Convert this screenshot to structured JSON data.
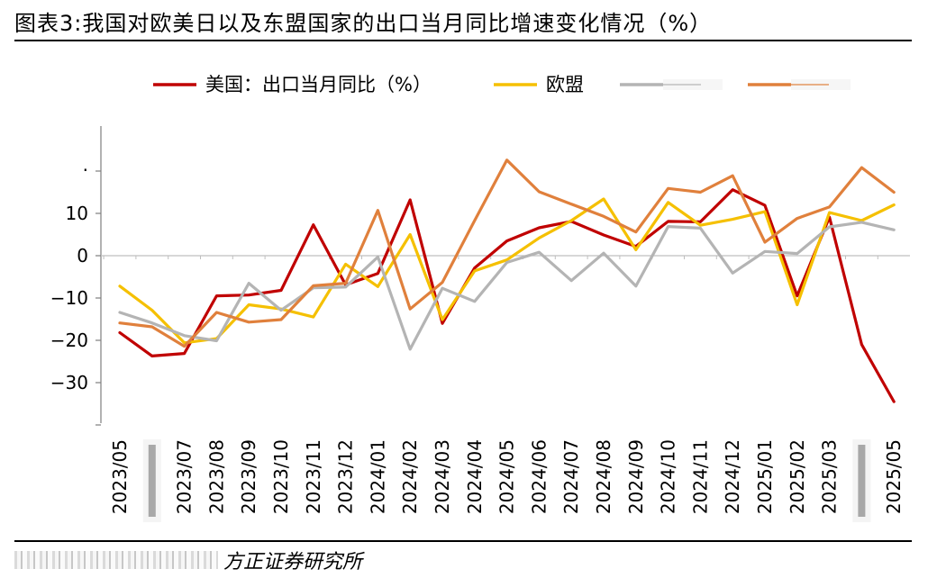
{
  "title": "图表3:我国对欧美日以及东盟国家的出口当月同比增速变化情况（%）",
  "source": "方正证券研究所",
  "chart_data": {
    "type": "line",
    "title": "图表3:我国对欧美日以及东盟国家的出口当月同比增速变化情况（%）",
    "xlabel": "",
    "ylabel": "",
    "ylim": [
      -40,
      20
    ],
    "yticks": [
      -30,
      -20,
      -10,
      0,
      10
    ],
    "grid": false,
    "legend_position": "top",
    "x": [
      "2023/05",
      "2023/06",
      "2023/07",
      "2023/08",
      "2023/09",
      "2023/10",
      "2023/11",
      "2023/12",
      "2024/01",
      "2024/02",
      "2024/03",
      "2024/04",
      "2024/05",
      "2024/06",
      "2024/07",
      "2024/08",
      "2024/09",
      "2024/10",
      "2024/11",
      "2024/12",
      "2025/01",
      "2025/02",
      "2025/03",
      "2025/04",
      "2025/05"
    ],
    "x_tick_labels": [
      "2023/05",
      "",
      "2023/07",
      "2023/08",
      "2023/09",
      "2023/10",
      "2023/11",
      "2023/12",
      "2024/01",
      "2024/02",
      "2024/03",
      "2024/04",
      "2024/05",
      "2024/06",
      "2024/07",
      "2024/08",
      "2024/09",
      "2024/10",
      "2024/11",
      "2024/12",
      "2025/01",
      "2025/02",
      "2025/03",
      "",
      "2025/05"
    ],
    "series": [
      {
        "name": "美国：出口当月同比（%）",
        "color": "#c00000",
        "values": [
          -18.2,
          -23.7,
          -23.1,
          -9.5,
          -9.3,
          -8.2,
          7.3,
          -6.9,
          -4.2,
          13.2,
          -16,
          -2.9,
          3.5,
          6.6,
          8.1,
          4.9,
          2.2,
          8.1,
          8,
          15.6,
          11.9,
          -9.5,
          9.1,
          -21,
          -34.5
        ]
      },
      {
        "name": "欧盟",
        "color": "#f5c000",
        "values": [
          -7.2,
          -12.9,
          -20.6,
          -19.6,
          -11.6,
          -12.6,
          -14.5,
          -2,
          -7.3,
          5,
          -15.1,
          -3.6,
          -1,
          4.2,
          8.3,
          13.4,
          1.4,
          12.6,
          7.2,
          8.6,
          10.4,
          -11.6,
          10.2,
          8.3,
          12
        ]
      },
      {
        "name": "",
        "color": "#b4b4b4",
        "values": [
          -13.4,
          -15.9,
          -18.9,
          -20.1,
          -6.5,
          -12.9,
          -7.6,
          -7.4,
          -0.3,
          -22.1,
          -7.7,
          -10.8,
          -1.6,
          0.8,
          -5.9,
          0.6,
          -7.2,
          6.9,
          6.5,
          -4.1,
          1,
          0.5,
          6.8,
          7.9,
          6.1
        ]
      },
      {
        "name": "",
        "color": "#e0803c",
        "values": [
          -15.9,
          -16.8,
          -21.4,
          -13.4,
          -15.7,
          -15.1,
          -7.1,
          -6.5,
          10.7,
          -12.6,
          -6.3,
          8.3,
          22.6,
          15.1,
          12.2,
          9.3,
          5.6,
          15.9,
          15,
          18.9,
          3.2,
          8.8,
          11.5,
          20.8,
          15
        ]
      }
    ]
  }
}
